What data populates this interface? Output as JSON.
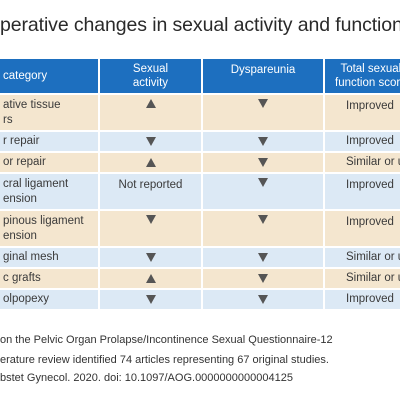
{
  "title": "perative changes in sexual activity and function",
  "headers": {
    "category": "category",
    "sexual_activity": "Sexual\nactivity",
    "dyspareunia": "Dyspareunia",
    "total_score": "Total sexual\nfunction score"
  },
  "rows": [
    {
      "category": "ative tissue\nrs",
      "sexual_activity": "up",
      "dyspareunia": "down",
      "total_score": "Improved"
    },
    {
      "category": "r repair",
      "sexual_activity": "down",
      "dyspareunia": "down",
      "total_score": "Improved"
    },
    {
      "category": "or repair",
      "sexual_activity": "up",
      "dyspareunia": "down",
      "total_score": "Similar or unchan"
    },
    {
      "category": "cral ligament\nension",
      "sexual_activity_text": "Not reported",
      "dyspareunia": "down",
      "total_score": "Improved"
    },
    {
      "category": "pinous ligament\nension",
      "sexual_activity": "down",
      "dyspareunia": "down",
      "total_score": "Improved"
    },
    {
      "category": "ginal mesh",
      "sexual_activity": "down",
      "dyspareunia": "down",
      "total_score": "Similar or unchan"
    },
    {
      "category": "c grafts",
      "sexual_activity": "up",
      "dyspareunia": "down",
      "total_score": "Similar or unchan"
    },
    {
      "category": "olpopexy",
      "sexual_activity": "down",
      "dyspareunia": "down",
      "total_score": "Improved"
    }
  ],
  "footer": [
    "on the Pelvic Organ Prolapse/Incontinence Sexual Questionnaire-12",
    "erature review identified 74 articles representing 67 original studies.",
    "bstet Gynecol. 2020. doi: 10.1097/AOG.0000000000004125"
  ],
  "colors": {
    "header_bg": "#1d6fbf",
    "row_tan": "#f4e6cf",
    "row_blue": "#dce9f5",
    "arrow": "#555555"
  },
  "icons": {
    "up": "arrow-up-icon",
    "down": "arrow-down-icon"
  }
}
